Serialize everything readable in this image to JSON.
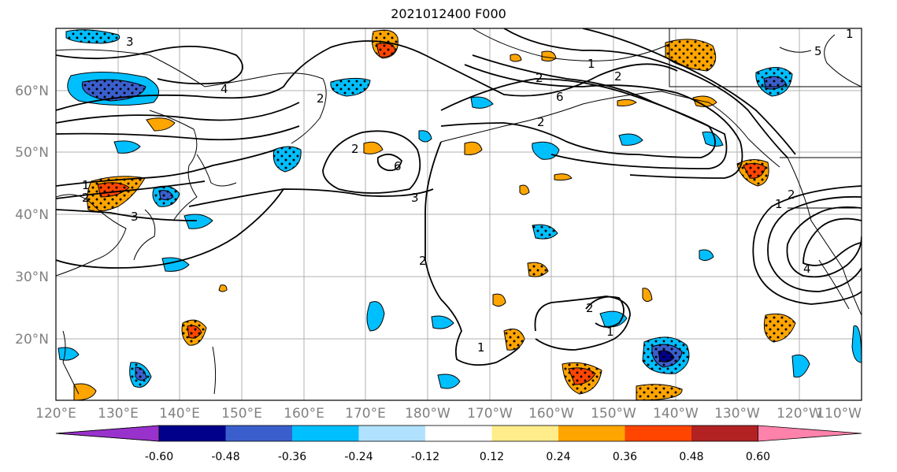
{
  "title": "2021012400 F000",
  "lat_labels": [
    "60°N",
    "50°N",
    "40°N",
    "30°N",
    "20°N"
  ],
  "lon_labels": [
    "120°E",
    "130°E",
    "140°E",
    "150°E",
    "160°E",
    "170°E",
    "180°W",
    "170°W",
    "160°W",
    "150°W",
    "140°W",
    "130°W",
    "120°W",
    "110°W"
  ],
  "colorbar": {
    "labels": [
      "-0.60",
      "-0.48",
      "-0.36",
      "-0.24",
      "-0.12",
      "0.12",
      "0.24",
      "0.36",
      "0.48",
      "0.60"
    ],
    "colors": [
      "#9932cc",
      "#00008b",
      "#3a5fcd",
      "#00bfff",
      "#b0e2ff",
      "#ffffff",
      "#ffec8b",
      "#ffa500",
      "#ff4500",
      "#b22222",
      "#ff82ab"
    ]
  },
  "contour_labels": [
    "3",
    "4",
    "1",
    "2",
    "3",
    "6",
    "2",
    "3",
    "2",
    "1",
    "2",
    "1",
    "2",
    "5",
    "1",
    "2",
    "6",
    "2",
    "2",
    "1",
    "1",
    "4",
    "2"
  ]
}
